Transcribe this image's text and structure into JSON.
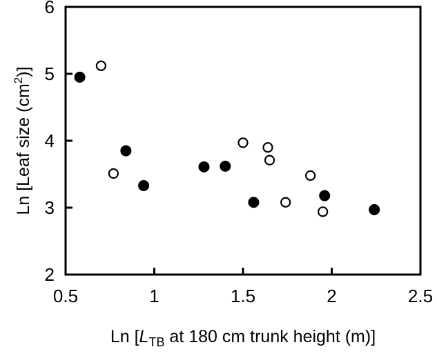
{
  "chart_data": {
    "type": "scatter",
    "title": "",
    "xlabel": {
      "prefix": "Ln [",
      "italic": "L",
      "subscript": "TB",
      "suffix": " at 180 cm trunk height (m)]"
    },
    "ylabel": {
      "prefix": "Ln [Leaf size (cm",
      "superscript": "2",
      "suffix": ")]"
    },
    "xlim": [
      0.5,
      2.5
    ],
    "ylim": [
      2,
      6
    ],
    "xticks": [
      0.5,
      1,
      1.5,
      2,
      2.5
    ],
    "xtick_labels": [
      "0.5",
      "1",
      "1.5",
      "2",
      "2.5"
    ],
    "yticks": [
      2,
      3,
      4,
      5,
      6
    ],
    "ytick_labels": [
      "2",
      "3",
      "4",
      "5",
      "6"
    ],
    "grid": false,
    "legend": null,
    "series": [
      {
        "marker": "filled-circle",
        "color": "#000000",
        "points": [
          [
            0.58,
            4.95
          ],
          [
            0.84,
            3.85
          ],
          [
            0.94,
            3.33
          ],
          [
            1.28,
            3.61
          ],
          [
            1.4,
            3.62
          ],
          [
            1.56,
            3.08
          ],
          [
            1.96,
            3.18
          ],
          [
            2.24,
            2.97
          ]
        ]
      },
      {
        "marker": "open-circle",
        "color": "#000000",
        "points": [
          [
            0.7,
            5.12
          ],
          [
            0.77,
            3.51
          ],
          [
            1.5,
            3.97
          ],
          [
            1.64,
            3.9
          ],
          [
            1.65,
            3.71
          ],
          [
            1.74,
            3.08
          ],
          [
            1.88,
            3.48
          ],
          [
            1.95,
            2.94
          ]
        ]
      }
    ]
  }
}
